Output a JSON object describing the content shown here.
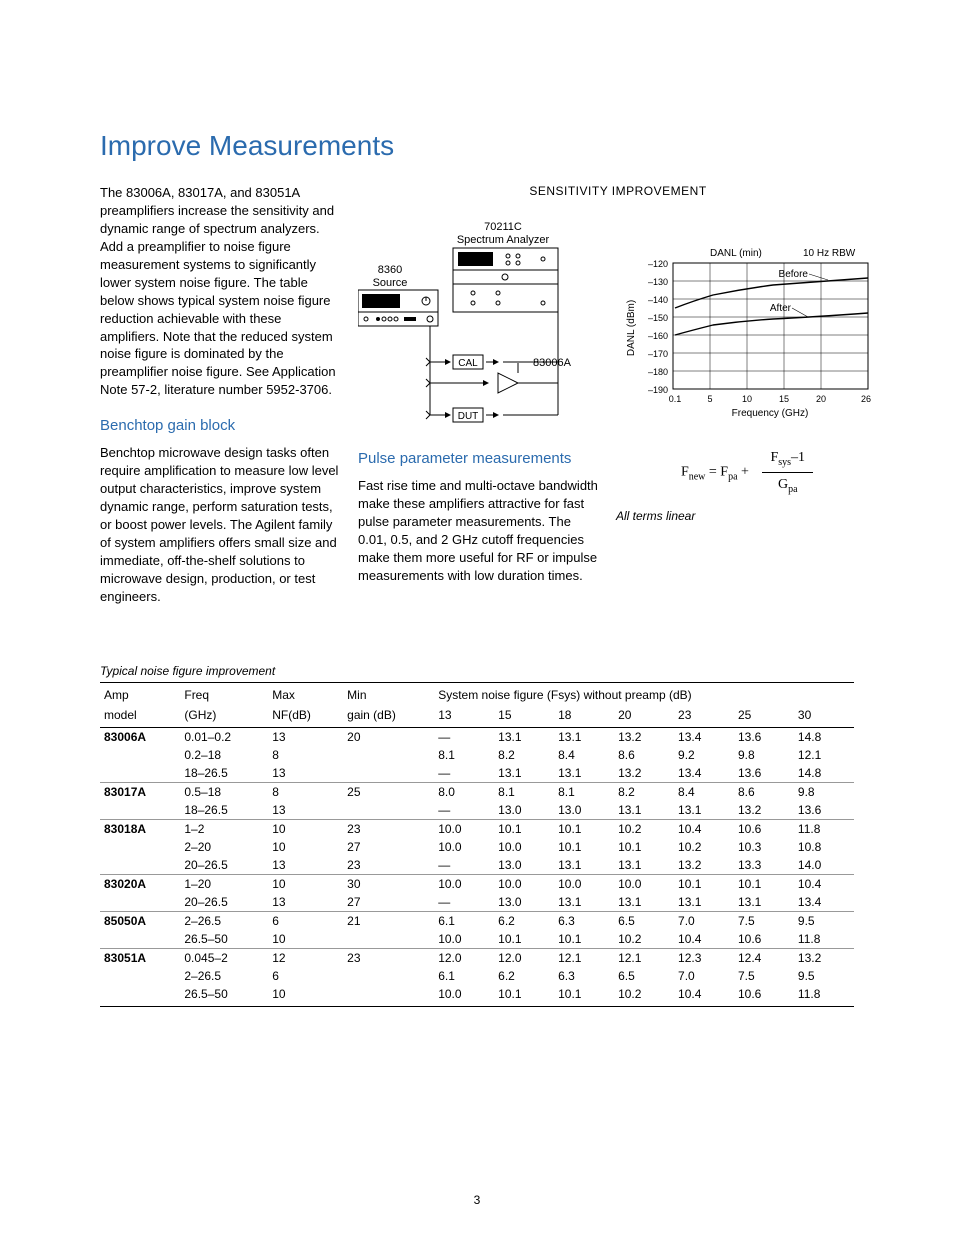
{
  "title": "Improve Measurements",
  "intro": "The 83006A, 83017A, and 83051A preamplifiers increase the sensitivity and dynamic range of spectrum analyzers. Add a preamplifier to noise figure measurement systems to significantly lower system noise figure. The table below shows typical system noise figure reduction achievable with these amplifiers. Note that the reduced system noise figure is dominated by the preamplifier noise figure. See Application Note 57-2, literature number 5952-3706.",
  "h_benchtop": "Benchtop gain block",
  "p_benchtop": "Benchtop microwave design tasks often require amplification to measure  low level output characteristics, improve system dynamic range, perform saturation tests, or boost power levels. The Agilent family of system amplifiers offers small size and immediate, off-the-shelf solutions to microwave design, production, or test engineers.",
  "h_pulse": "Pulse parameter measurements",
  "p_pulse": "Fast rise time and multi-octave bandwidth make these amplifiers attractive for fast pulse parameter measurements. The 0.01, 0.5, and 2 GHz cutoff frequencies make them more useful for RF or impulse measurements with low duration times.",
  "figure": {
    "title": "SENSITIVITY IMPROVEMENT",
    "analyzer_label_line1": "70211C",
    "analyzer_label_line2": "Spectrum Analyzer",
    "source_label_line1": "8360",
    "source_label_line2": "Source",
    "amp_label": "83006A",
    "cal_label": "CAL",
    "dut_label": "DUT",
    "chart": {
      "danl_label": "DANL (min)",
      "rbw_label": "10 Hz RBW",
      "before_label": "Before",
      "after_label": "After",
      "y_label": "DANL (dBm)",
      "x_label": "Frequency (GHz)",
      "y_ticks": [
        "–120",
        "–130",
        "–140",
        "–150",
        "–160",
        "–170",
        "–180",
        "–190"
      ],
      "x_ticks": [
        "0.1",
        "5",
        "10",
        "15",
        "20",
        "26"
      ],
      "colors": {
        "axis": "#000000",
        "grid": "#000000",
        "line": "#000000"
      },
      "before_series": [
        [
          0.1,
          -145
        ],
        [
          3,
          -140
        ],
        [
          6,
          -137
        ],
        [
          10,
          -133
        ],
        [
          14,
          -131
        ],
        [
          18,
          -130
        ],
        [
          22,
          -129
        ],
        [
          26,
          -128
        ]
      ],
      "after_series": [
        [
          0.1,
          -160
        ],
        [
          3,
          -157
        ],
        [
          6,
          -155
        ],
        [
          10,
          -152
        ],
        [
          14,
          -151
        ],
        [
          18,
          -150
        ],
        [
          22,
          -150
        ],
        [
          26,
          -148
        ]
      ]
    }
  },
  "formula": {
    "lhs": "F",
    "lhs_sub": "new",
    "eq": " = F",
    "pa_sub": "pa",
    "plus": " + ",
    "num1": "F",
    "num1_sub": "sys",
    "num2": "–1",
    "den": "G",
    "den_sub": "pa",
    "note": "All terms linear"
  },
  "table": {
    "caption": "Typical noise figure improvement",
    "head": {
      "amp": "Amp",
      "model": "model",
      "freq": "Freq",
      "ghz": "(GHz)",
      "max": "Max",
      "nf": "NF(dB)",
      "min": "Min",
      "gain": "gain (dB)",
      "group": "System noise figure (Fsys) without preamp (dB)",
      "c": [
        "13",
        "15",
        "18",
        "20",
        "23",
        "25",
        "30"
      ]
    },
    "rows": [
      {
        "sep": true,
        "model": "83006A",
        "freq": "0.01–0.2",
        "nf": "13",
        "gain": "20",
        "v": [
          "—",
          "13.1",
          "13.1",
          "13.2",
          "13.4",
          "13.6",
          "14.8"
        ]
      },
      {
        "model": "",
        "freq": "0.2–18",
        "nf": "8",
        "gain": "",
        "v": [
          "8.1",
          "8.2",
          "8.4",
          "8.6",
          "9.2",
          "9.8",
          "12.1"
        ]
      },
      {
        "model": "",
        "freq": "18–26.5",
        "nf": "13",
        "gain": "",
        "v": [
          "—",
          "13.1",
          "13.1",
          "13.2",
          "13.4",
          "13.6",
          "14.8"
        ]
      },
      {
        "sep": true,
        "model": "83017A",
        "freq": "0.5–18",
        "nf": "8",
        "gain": "25",
        "v": [
          "8.0",
          "8.1",
          "8.1",
          "8.2",
          "8.4",
          "8.6",
          "9.8"
        ]
      },
      {
        "model": "",
        "freq": "18–26.5",
        "nf": "13",
        "gain": "",
        "v": [
          "—",
          "13.0",
          "13.0",
          "13.1",
          "13.1",
          "13.2",
          "13.6"
        ]
      },
      {
        "sep": true,
        "model": "83018A",
        "freq": "1–2",
        "nf": "10",
        "gain": "23",
        "v": [
          "10.0",
          "10.1",
          "10.1",
          "10.2",
          "10.4",
          "10.6",
          "11.8"
        ]
      },
      {
        "model": "",
        "freq": "2–20",
        "nf": "10",
        "gain": "27",
        "v": [
          "10.0",
          "10.0",
          "10.1",
          "10.1",
          "10.2",
          "10.3",
          "10.8"
        ]
      },
      {
        "model": "",
        "freq": "20–26.5",
        "nf": "13",
        "gain": "23",
        "v": [
          "—",
          "13.0",
          "13.1",
          "13.1",
          "13.2",
          "13.3",
          "14.0"
        ]
      },
      {
        "sep": true,
        "model": "83020A",
        "freq": "1–20",
        "nf": "10",
        "gain": "30",
        "v": [
          "10.0",
          "10.0",
          "10.0",
          "10.0",
          "10.1",
          "10.1",
          "10.4"
        ]
      },
      {
        "model": "",
        "freq": "20–26.5",
        "nf": "13",
        "gain": "27",
        "v": [
          "—",
          "13.0",
          "13.1",
          "13.1",
          "13.1",
          "13.1",
          "13.4"
        ]
      },
      {
        "sep": true,
        "model": "85050A",
        "freq": "2–26.5",
        "nf": "6",
        "gain": "21",
        "v": [
          "6.1",
          "6.2",
          "6.3",
          "6.5",
          "7.0",
          "7.5",
          "9.5"
        ]
      },
      {
        "model": "",
        "freq": "26.5–50",
        "nf": "10",
        "gain": "",
        "v": [
          "10.0",
          "10.1",
          "10.1",
          "10.2",
          "10.4",
          "10.6",
          "11.8"
        ]
      },
      {
        "sep": true,
        "model": "83051A",
        "freq": "0.045–2",
        "nf": "12",
        "gain": "23",
        "v": [
          "12.0",
          "12.0",
          "12.1",
          "12.1",
          "12.3",
          "12.4",
          "13.2"
        ]
      },
      {
        "model": "",
        "freq": "2–26.5",
        "nf": "6",
        "gain": "",
        "v": [
          "6.1",
          "6.2",
          "6.3",
          "6.5",
          "7.0",
          "7.5",
          "9.5"
        ]
      },
      {
        "model": "",
        "freq": "26.5–50",
        "nf": "10",
        "gain": "",
        "v": [
          "10.0",
          "10.1",
          "10.1",
          "10.2",
          "10.4",
          "10.6",
          "11.8"
        ]
      }
    ]
  },
  "page_number": "3"
}
